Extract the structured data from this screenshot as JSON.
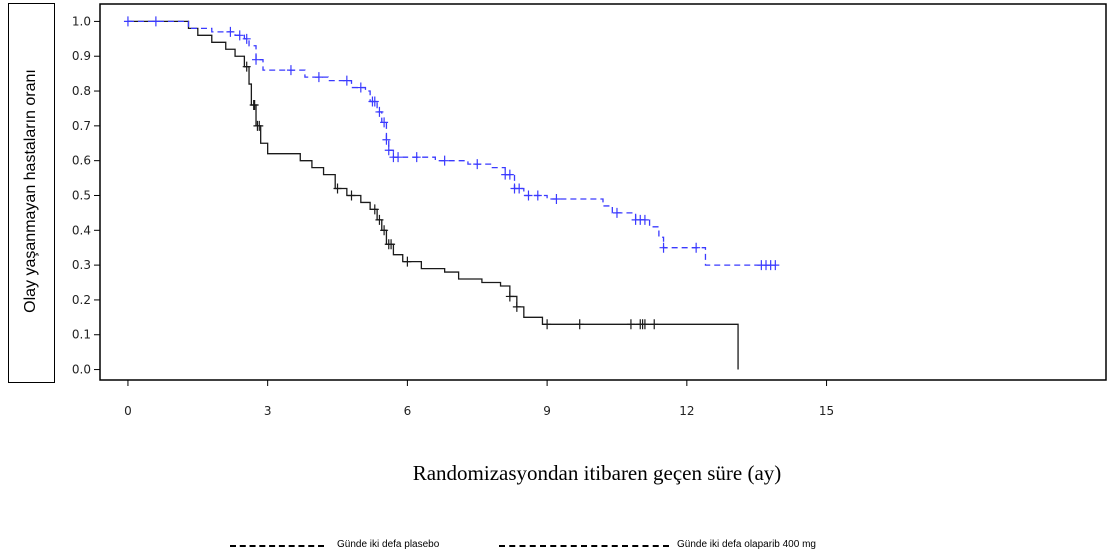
{
  "chart_data": {
    "type": "line",
    "subtype": "kaplan-meier",
    "title": "",
    "xlabel": "Randomizasyondan itibaren geçen süre (ay)",
    "ylabel": "Olay yaşanmayan hastaların oranı",
    "xlim": [
      -0.6,
      21
    ],
    "ylim": [
      -0.03,
      1.05
    ],
    "x_ticks": [
      0,
      3,
      6,
      9,
      12,
      15
    ],
    "y_ticks": [
      0.0,
      0.1,
      0.2,
      0.3,
      0.4,
      0.5,
      0.6,
      0.7,
      0.8,
      0.9,
      1.0
    ],
    "grid": false,
    "legend_position": "bottom",
    "series": [
      {
        "name": "Günde iki defa plasebo",
        "color": "#1a1a1a",
        "style": "solid",
        "steps": [
          [
            0,
            1.0
          ],
          [
            1.2,
            1.0
          ],
          [
            1.3,
            0.98
          ],
          [
            1.5,
            0.96
          ],
          [
            1.8,
            0.94
          ],
          [
            2.1,
            0.92
          ],
          [
            2.3,
            0.9
          ],
          [
            2.5,
            0.87
          ],
          [
            2.6,
            0.82
          ],
          [
            2.65,
            0.76
          ],
          [
            2.75,
            0.7
          ],
          [
            2.85,
            0.65
          ],
          [
            3.0,
            0.62
          ],
          [
            3.6,
            0.62
          ],
          [
            3.7,
            0.6
          ],
          [
            3.95,
            0.58
          ],
          [
            4.2,
            0.56
          ],
          [
            4.45,
            0.52
          ],
          [
            4.7,
            0.5
          ],
          [
            5.0,
            0.48
          ],
          [
            5.2,
            0.46
          ],
          [
            5.35,
            0.43
          ],
          [
            5.45,
            0.4
          ],
          [
            5.55,
            0.36
          ],
          [
            5.7,
            0.33
          ],
          [
            5.9,
            0.31
          ],
          [
            6.3,
            0.29
          ],
          [
            6.8,
            0.28
          ],
          [
            7.1,
            0.26
          ],
          [
            7.6,
            0.25
          ],
          [
            8.0,
            0.24
          ],
          [
            8.2,
            0.21
          ],
          [
            8.35,
            0.18
          ],
          [
            8.5,
            0.15
          ],
          [
            8.9,
            0.13
          ],
          [
            13.1,
            0.13
          ],
          [
            13.1,
            0.0
          ]
        ],
        "censor_x": [
          2.55,
          2.7,
          2.72,
          2.78,
          2.82,
          4.5,
          4.8,
          5.3,
          5.4,
          5.5,
          5.6,
          5.65,
          6.0,
          8.2,
          8.35,
          9.0,
          9.7,
          10.8,
          11.0,
          11.05,
          11.1,
          11.3
        ]
      },
      {
        "name": "Günde iki defa olaparib 400 mg",
        "color": "#3a3aff",
        "style": "dashed",
        "steps": [
          [
            0,
            1.0
          ],
          [
            1.2,
            1.0
          ],
          [
            1.3,
            0.98
          ],
          [
            1.8,
            0.97
          ],
          [
            2.3,
            0.96
          ],
          [
            2.5,
            0.95
          ],
          [
            2.6,
            0.93
          ],
          [
            2.75,
            0.89
          ],
          [
            2.9,
            0.86
          ],
          [
            3.6,
            0.86
          ],
          [
            3.8,
            0.84
          ],
          [
            4.3,
            0.83
          ],
          [
            4.8,
            0.81
          ],
          [
            5.1,
            0.8
          ],
          [
            5.2,
            0.77
          ],
          [
            5.35,
            0.74
          ],
          [
            5.45,
            0.71
          ],
          [
            5.55,
            0.66
          ],
          [
            5.6,
            0.63
          ],
          [
            5.7,
            0.61
          ],
          [
            6.6,
            0.6
          ],
          [
            7.3,
            0.59
          ],
          [
            7.8,
            0.58
          ],
          [
            8.1,
            0.56
          ],
          [
            8.3,
            0.52
          ],
          [
            8.5,
            0.5
          ],
          [
            9.0,
            0.49
          ],
          [
            10.2,
            0.47
          ],
          [
            10.4,
            0.45
          ],
          [
            10.9,
            0.43
          ],
          [
            11.2,
            0.41
          ],
          [
            11.4,
            0.38
          ],
          [
            11.5,
            0.35
          ],
          [
            12.2,
            0.35
          ],
          [
            12.4,
            0.3
          ],
          [
            13.9,
            0.3
          ]
        ],
        "censor_x": [
          0,
          0.6,
          2.2,
          2.4,
          2.55,
          2.75,
          3.5,
          4.1,
          4.7,
          5.0,
          5.25,
          5.3,
          5.4,
          5.5,
          5.55,
          5.6,
          5.7,
          5.8,
          6.2,
          6.8,
          7.5,
          8.1,
          8.2,
          8.3,
          8.4,
          8.6,
          8.8,
          9.2,
          10.5,
          10.9,
          11.0,
          11.1,
          11.5,
          12.2,
          13.6,
          13.7,
          13.8,
          13.9
        ]
      }
    ]
  }
}
